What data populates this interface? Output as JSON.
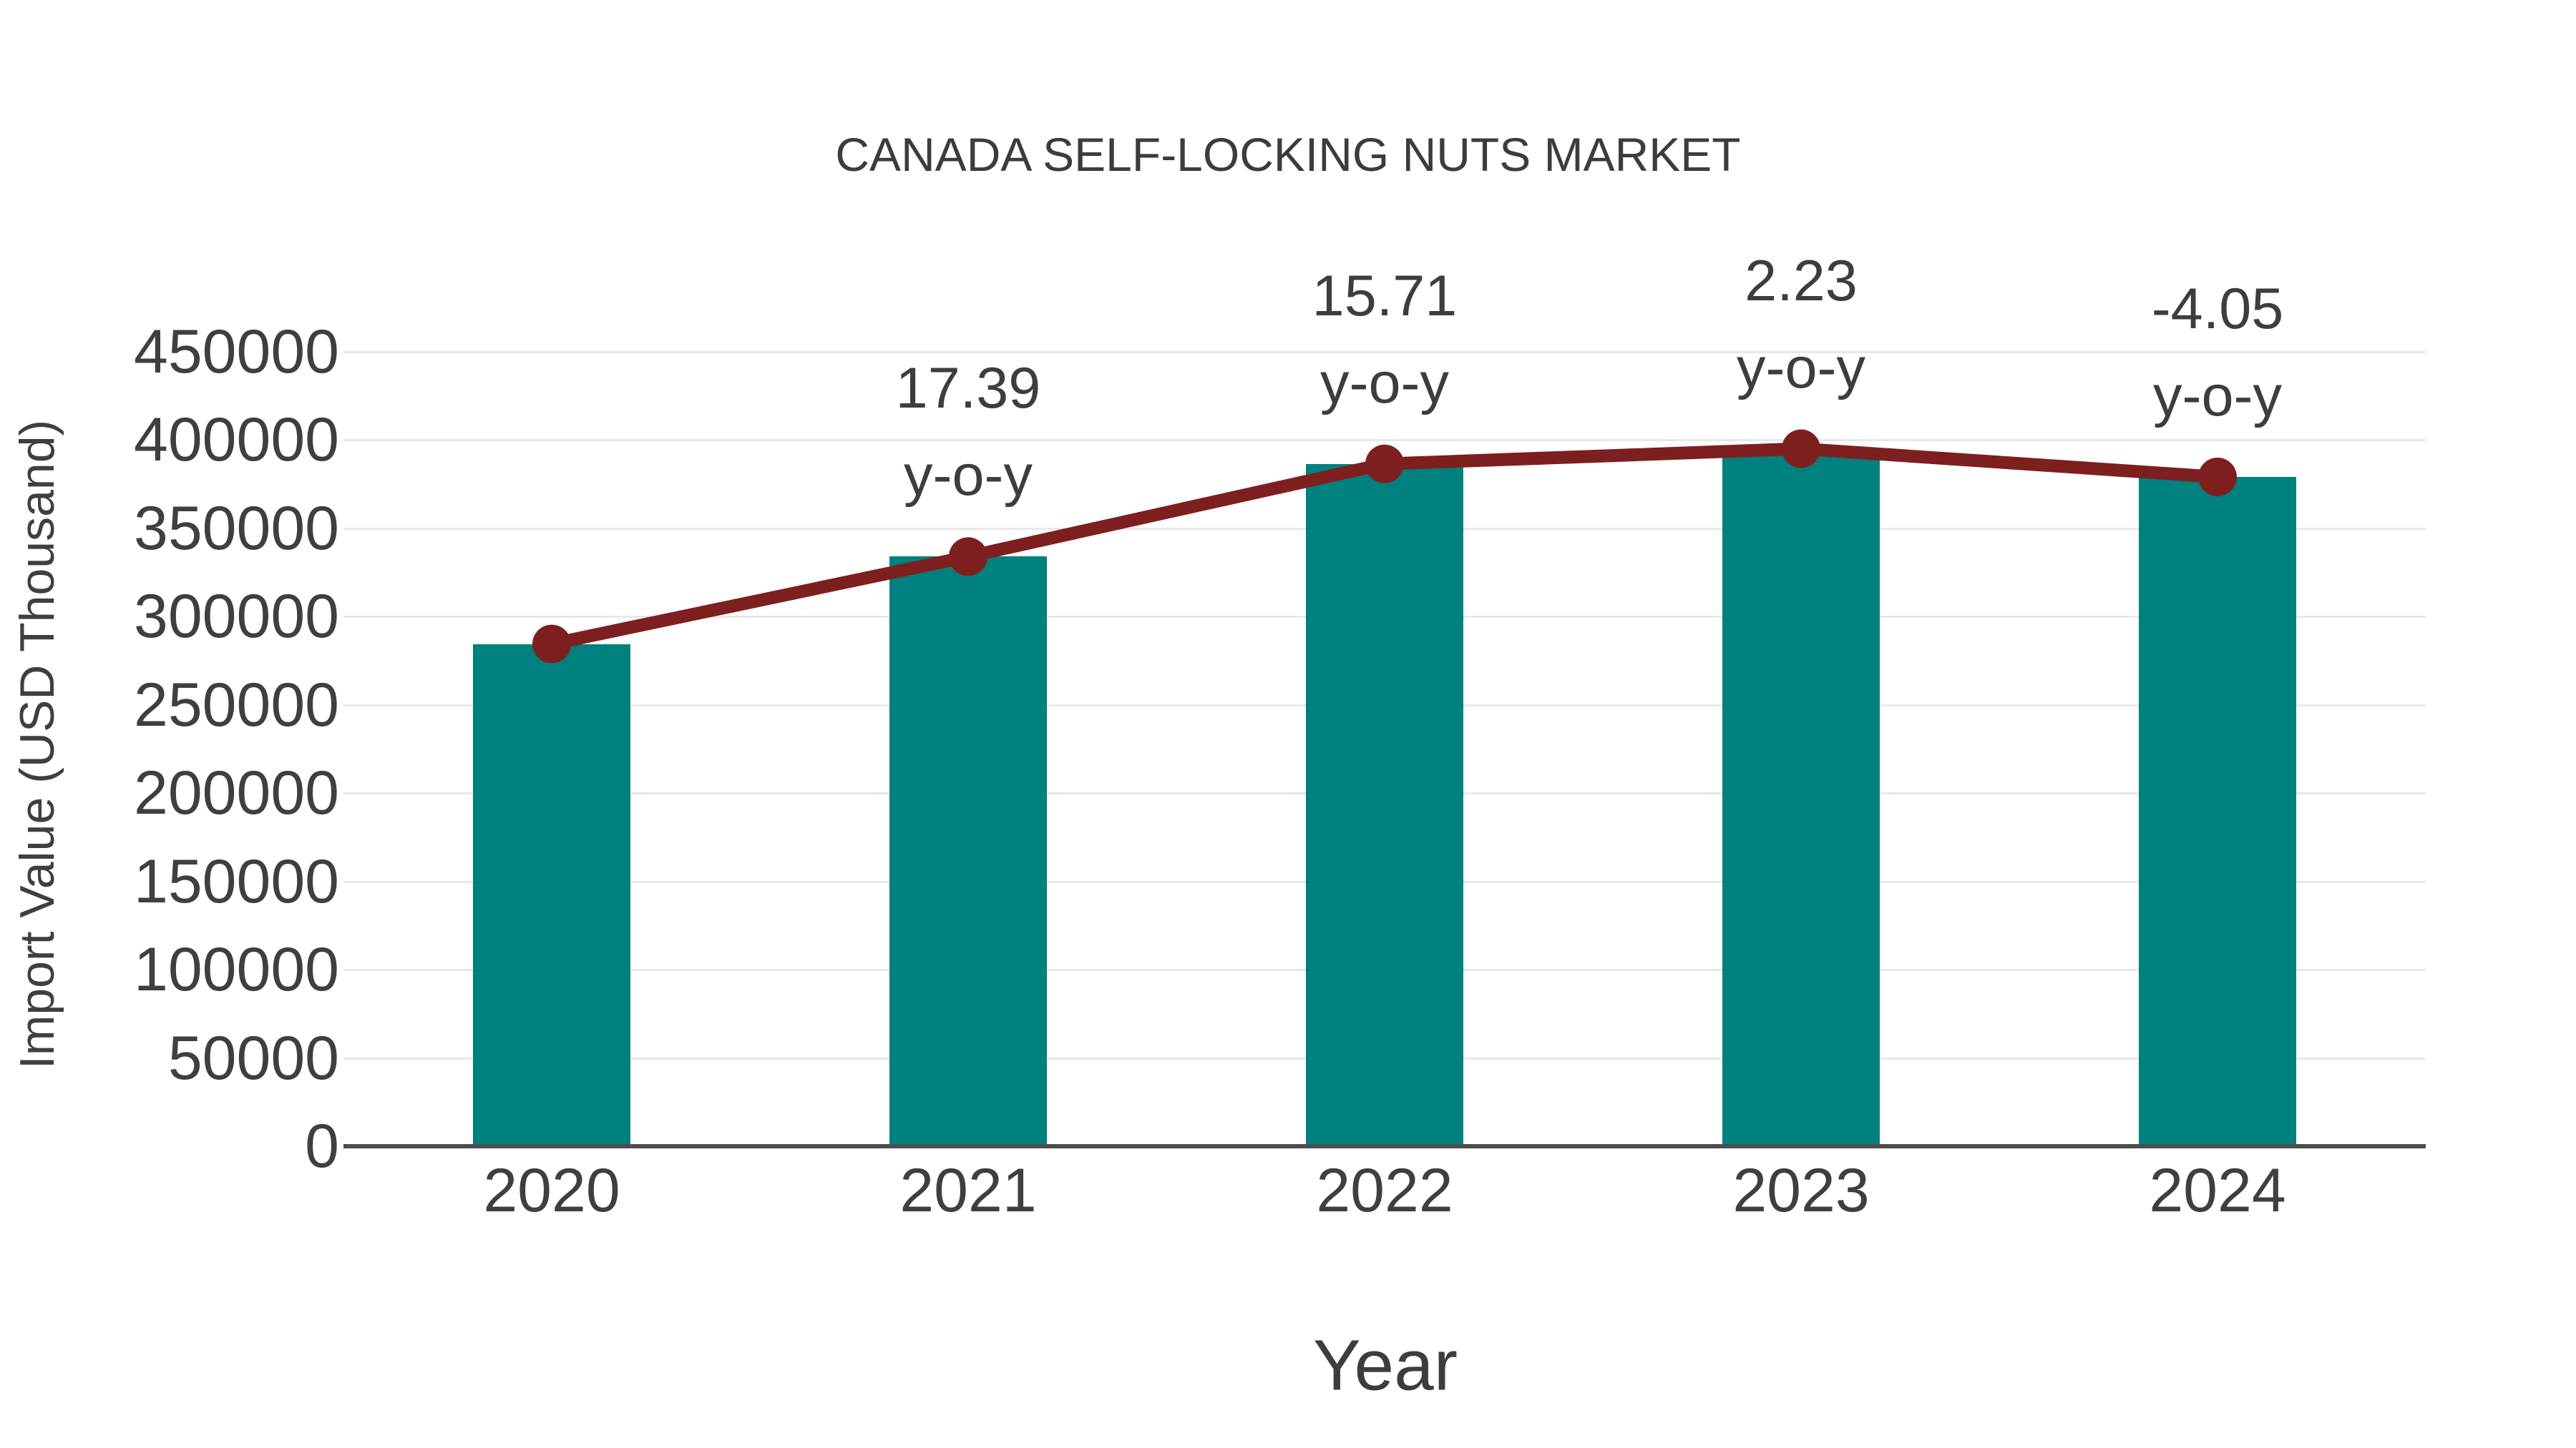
{
  "title": "CANADA SELF-LOCKING NUTS MARKET",
  "axes": {
    "x_title": "Year",
    "y_title": "Import Value (USD Thousand)"
  },
  "colors": {
    "bar": "#00807e",
    "line": "#7e1f1f",
    "grid": "#e8e8e8",
    "axis": "#4d4d4d",
    "text": "#3f3f3f"
  },
  "chart_data": {
    "type": "bar",
    "title": "CANADA SELF-LOCKING NUTS MARKET",
    "xlabel": "Year",
    "ylabel": "Import Value (USD Thousand)",
    "categories": [
      "2020",
      "2021",
      "2022",
      "2023",
      "2024"
    ],
    "y_ticks": [
      0,
      50000,
      100000,
      150000,
      200000,
      250000,
      300000,
      350000,
      400000,
      450000
    ],
    "ylim": [
      0,
      450000
    ],
    "grid": true,
    "legend_position": "none",
    "series": [
      {
        "name": "Import Value (USD Thousand)",
        "type": "bar",
        "color": "#00807e",
        "values": [
          284500,
          334000,
          386500,
          395100,
          379100
        ]
      },
      {
        "name": "y-o-y trend line",
        "type": "line",
        "color": "#7e1f1f",
        "values": [
          284500,
          334000,
          386500,
          395100,
          379100
        ]
      }
    ],
    "annotations": [
      {
        "category": "2021",
        "value_label": "17.39",
        "suffix_label": "y-o-y"
      },
      {
        "category": "2022",
        "value_label": "15.71",
        "suffix_label": "y-o-y"
      },
      {
        "category": "2023",
        "value_label": "2.23",
        "suffix_label": "y-o-y"
      },
      {
        "category": "2024",
        "value_label": "-4.05",
        "suffix_label": "y-o-y"
      }
    ]
  }
}
